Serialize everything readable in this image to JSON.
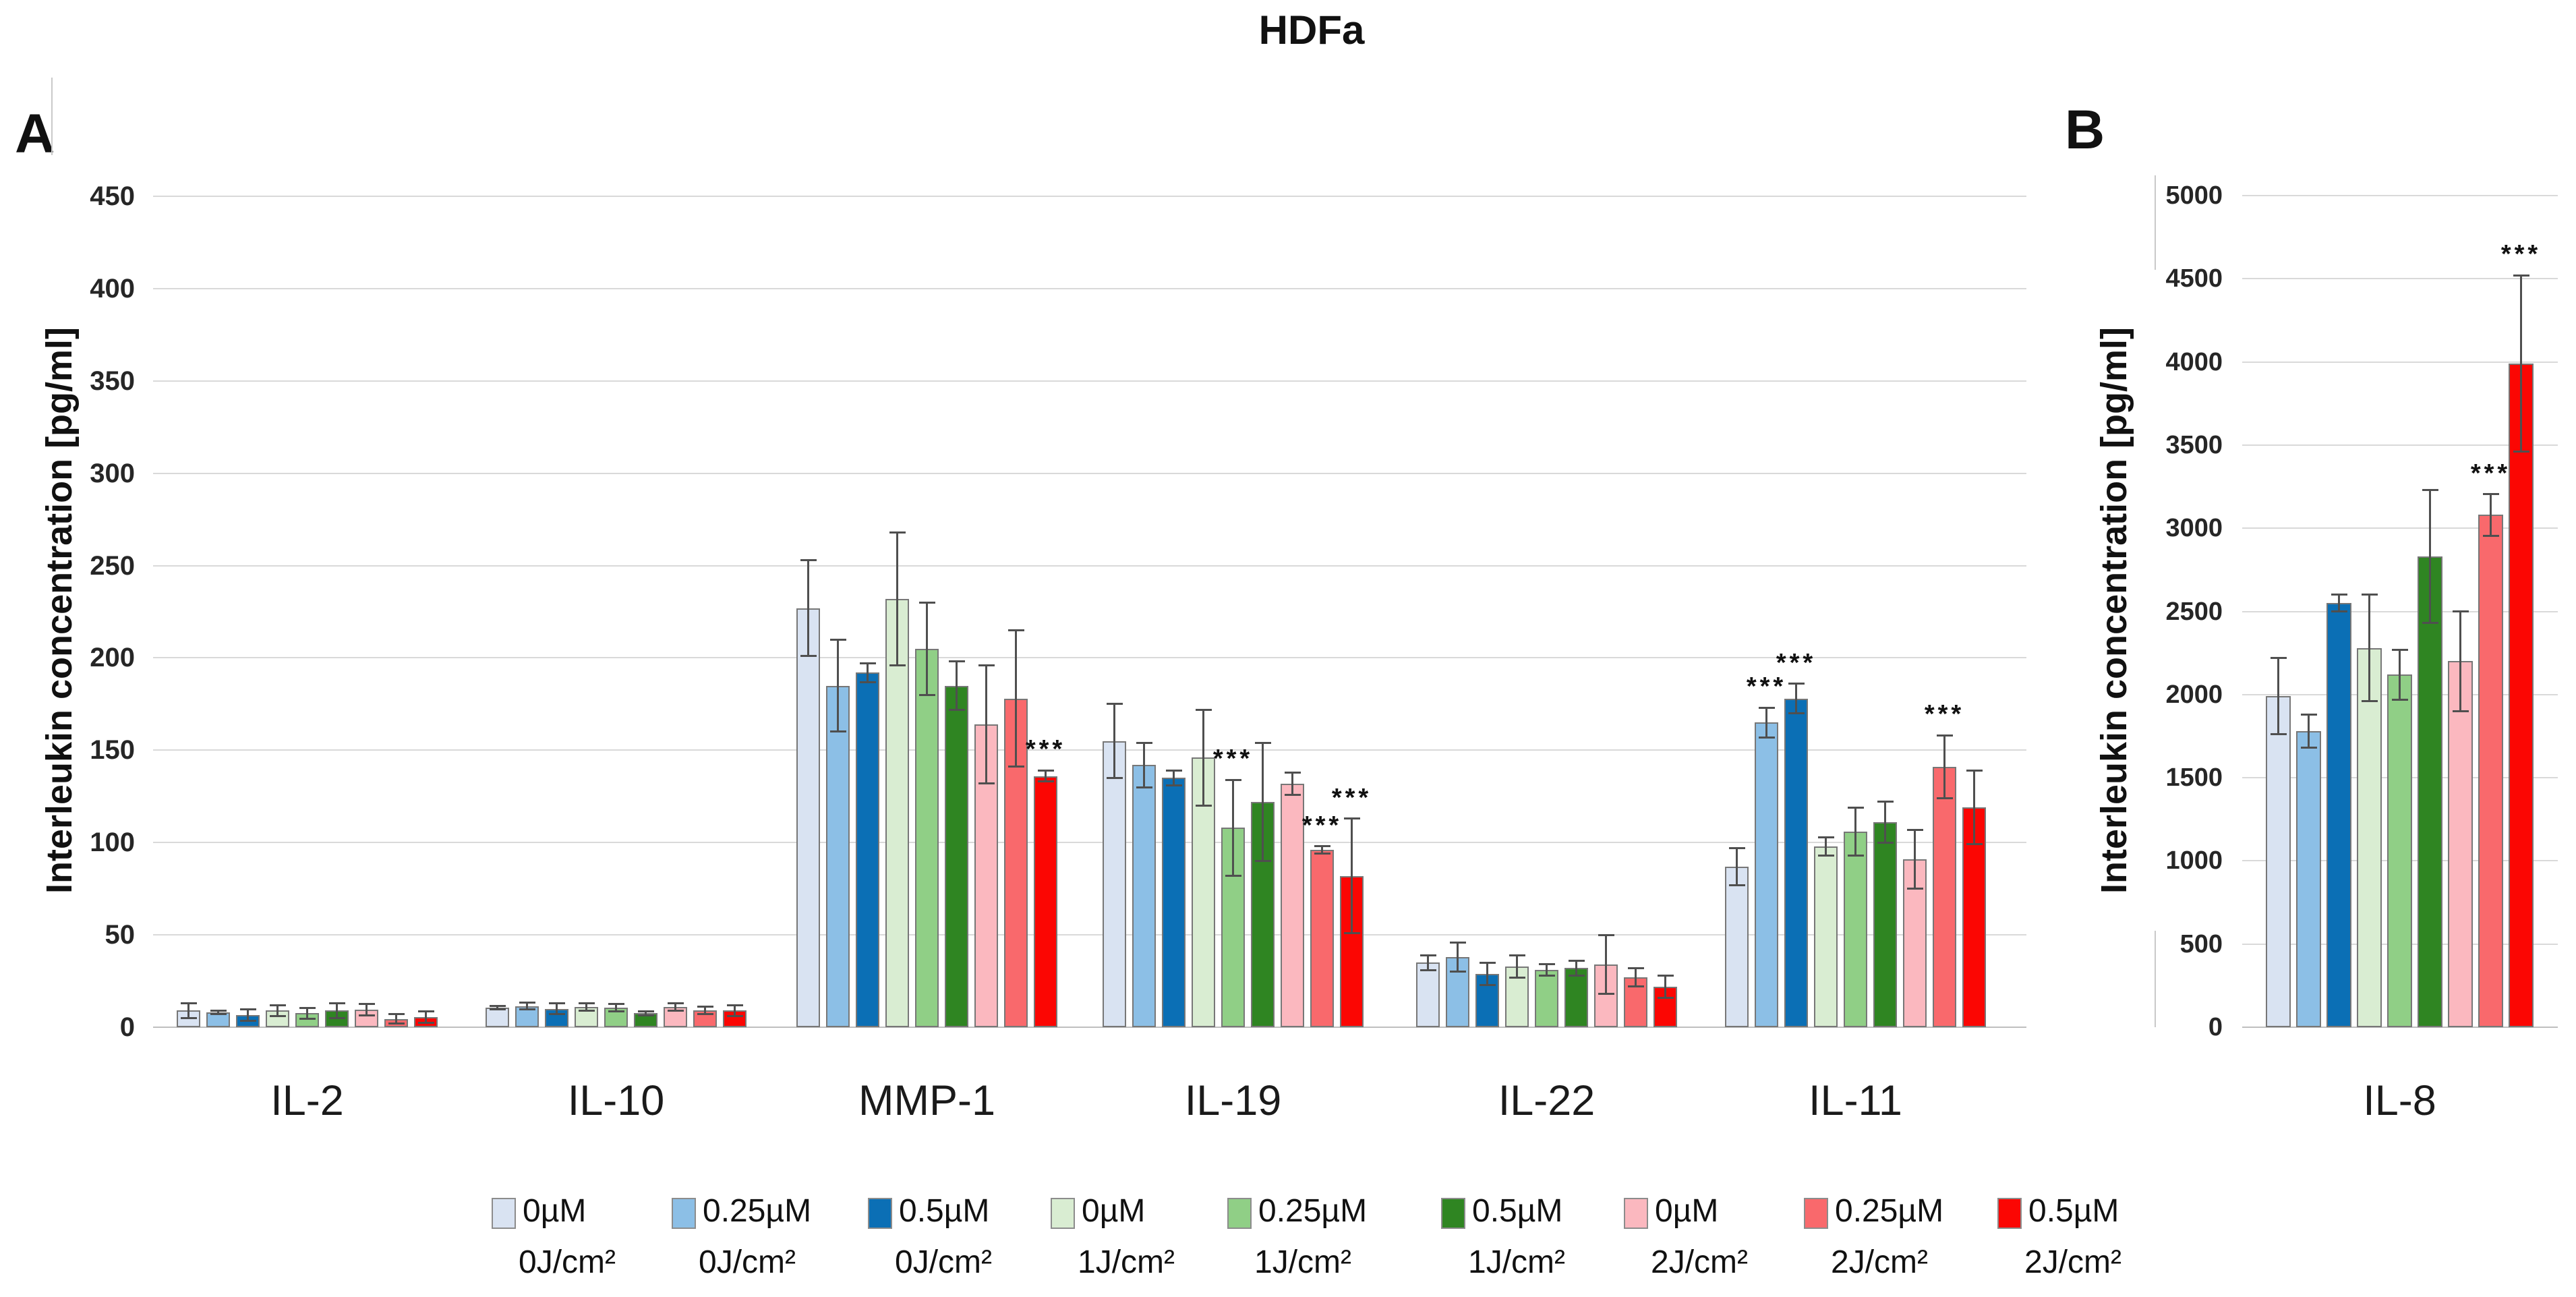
{
  "figure": {
    "title": "HDFa",
    "panel_a_label": "A",
    "panel_b_label": "B",
    "y_axis_label": "Interleukin concentration [pg/ml]",
    "significance_marker": "***"
  },
  "colors": {
    "series": [
      "#d9e3f2",
      "#8cbfe6",
      "#0b6fb5",
      "#d9edd2",
      "#90cf86",
      "#2f8522",
      "#fbb8bf",
      "#f9696c",
      "#fb0603"
    ],
    "bar_border": "#777777",
    "gridline": "#d9d9d9",
    "baseline": "#bfbfbf",
    "error_bar": "#4f4f4f"
  },
  "legend": [
    {
      "conc": "0µM",
      "dose": "0J/cm²"
    },
    {
      "conc": "0.25µM",
      "dose": "0J/cm²"
    },
    {
      "conc": "0.5µM",
      "dose": "0J/cm²"
    },
    {
      "conc": "0µM",
      "dose": "1J/cm²"
    },
    {
      "conc": "0.25µM",
      "dose": "1J/cm²"
    },
    {
      "conc": "0.5µM",
      "dose": "1J/cm²"
    },
    {
      "conc": "0µM",
      "dose": "2J/cm²"
    },
    {
      "conc": "0.25µM",
      "dose": "2J/cm²"
    },
    {
      "conc": "0.5µM",
      "dose": "2J/cm²"
    }
  ],
  "chart_data": [
    {
      "type": "bar",
      "panel": "A",
      "title": "HDFa",
      "xlabel": "",
      "ylabel": "Interleukin concentration [pg/ml]",
      "ylim": [
        0,
        450
      ],
      "ytick_step": 50,
      "grid": true,
      "legend_position": "bottom",
      "categories": [
        "IL-2",
        "IL-10",
        "MMP-1",
        "IL-19",
        "IL-22",
        "IL-11"
      ],
      "series_names": [
        "0µM 0J/cm²",
        "0.25µM 0J/cm²",
        "0.5µM 0J/cm²",
        "0µM 1J/cm²",
        "0.25µM 1J/cm²",
        "0.5µM 1J/cm²",
        "0µM 2J/cm²",
        "0.25µM 2J/cm²",
        "0.5µM 2J/cm²"
      ],
      "groups": [
        {
          "category": "IL-2",
          "values": [
            9,
            8,
            6.5,
            9,
            7.5,
            9,
            9.5,
            4.5,
            5.5
          ],
          "errors": [
            4,
            1,
            3,
            3,
            3,
            4,
            3,
            2.5,
            3
          ],
          "sig_indices": []
        },
        {
          "category": "IL-10",
          "values": [
            10.5,
            11.5,
            10,
            11,
            10.5,
            7.5,
            11,
            9,
            9
          ],
          "errors": [
            1,
            2,
            3,
            2,
            2,
            1,
            2,
            2,
            3
          ],
          "sig_indices": []
        },
        {
          "category": "MMP-1",
          "values": [
            227,
            185,
            192,
            232,
            205,
            185,
            164,
            178,
            136
          ],
          "errors": [
            26,
            25,
            5,
            36,
            25,
            13,
            32,
            37,
            3
          ],
          "sig_indices": [
            8
          ]
        },
        {
          "category": "IL-19",
          "values": [
            155,
            142,
            135,
            146,
            108,
            122,
            132,
            96,
            82
          ],
          "errors": [
            20,
            12,
            4,
            26,
            26,
            32,
            6,
            2,
            31
          ],
          "sig_indices": [
            4,
            7,
            8
          ]
        },
        {
          "category": "IL-22",
          "values": [
            35,
            38,
            29,
            33,
            31,
            32,
            34,
            27,
            22
          ],
          "errors": [
            4,
            8,
            6,
            6,
            3,
            4,
            16,
            5,
            6
          ],
          "sig_indices": []
        },
        {
          "category": "IL-11",
          "values": [
            87,
            165,
            178,
            98,
            106,
            111,
            91,
            141,
            119
          ],
          "errors": [
            10,
            8,
            8,
            5,
            13,
            11,
            16,
            17,
            20
          ],
          "sig_indices": [
            1,
            2,
            7
          ]
        }
      ]
    },
    {
      "type": "bar",
      "panel": "B",
      "title": "HDFa",
      "xlabel": "",
      "ylabel": "Interleukin concentration [pg/ml]",
      "ylim": [
        0,
        5000
      ],
      "ytick_step": 500,
      "grid": true,
      "legend_position": "bottom",
      "categories": [
        "IL-8"
      ],
      "series_names": [
        "0µM 0J/cm²",
        "0.25µM 0J/cm²",
        "0.5µM 0J/cm²",
        "0µM 1J/cm²",
        "0.25µM 1J/cm²",
        "0.5µM 1J/cm²",
        "0µM 2J/cm²",
        "0.25µM 2J/cm²",
        "0.5µM 2J/cm²"
      ],
      "groups": [
        {
          "category": "IL-8",
          "values": [
            1990,
            1780,
            2550,
            2280,
            2120,
            2830,
            2200,
            3080,
            3990
          ],
          "errors": [
            230,
            100,
            50,
            320,
            150,
            400,
            300,
            125,
            530
          ],
          "sig_indices": [
            7,
            8
          ]
        }
      ]
    }
  ]
}
